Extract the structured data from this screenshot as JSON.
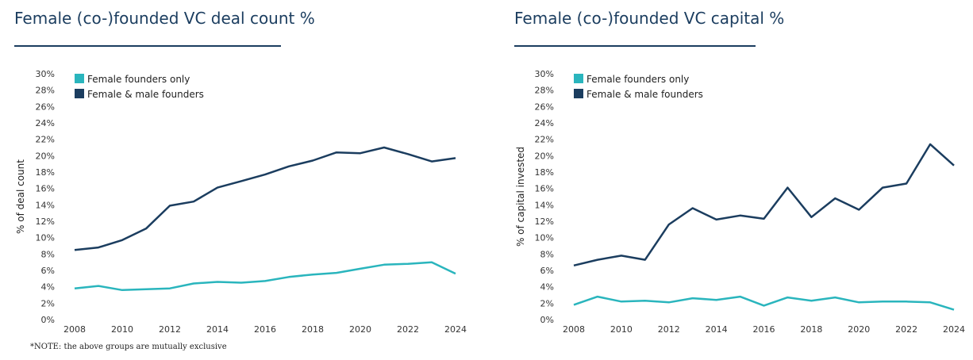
{
  "note": "*NOTE: the above groups are mutually exclusive",
  "colors": {
    "teal": "#2ab5bd",
    "navy": "#1b3d5f",
    "rule": "#1b3d5f"
  },
  "charts": [
    {
      "title": "Female (co-)founded VC deal count %",
      "chart_data": {
        "type": "line",
        "ylabel": "% of deal count",
        "xlabel": "",
        "ylim": [
          0,
          30
        ],
        "yticks": [
          0,
          2,
          4,
          6,
          8,
          10,
          12,
          14,
          16,
          18,
          20,
          22,
          24,
          26,
          28,
          30
        ],
        "ytick_suffix": "%",
        "x": [
          2008,
          2009,
          2010,
          2011,
          2012,
          2013,
          2014,
          2015,
          2016,
          2017,
          2018,
          2019,
          2020,
          2021,
          2022,
          2023,
          2024
        ],
        "xticks": [
          2008,
          2010,
          2012,
          2014,
          2016,
          2018,
          2020,
          2022,
          2024
        ],
        "grid": false,
        "legend": "top-left",
        "series": [
          {
            "name": "Female founders only",
            "color": "#2ab5bd",
            "values": [
              3.8,
              4.1,
              3.6,
              3.7,
              3.8,
              4.4,
              4.6,
              4.5,
              4.7,
              5.2,
              5.5,
              5.7,
              6.2,
              6.7,
              6.8,
              7.0,
              5.6
            ]
          },
          {
            "name": "Female & male founders",
            "color": "#1b3d5f",
            "values": [
              8.5,
              8.8,
              9.7,
              11.1,
              13.9,
              14.4,
              16.1,
              16.9,
              17.7,
              18.7,
              19.4,
              20.4,
              20.3,
              21.0,
              20.2,
              19.3,
              19.7
            ]
          }
        ]
      }
    },
    {
      "title": "Female (co-)founded VC capital %",
      "chart_data": {
        "type": "line",
        "ylabel": "% of capital invested",
        "xlabel": "",
        "ylim": [
          0,
          30
        ],
        "yticks": [
          0,
          2,
          4,
          6,
          8,
          10,
          12,
          14,
          16,
          18,
          20,
          22,
          24,
          26,
          28,
          30
        ],
        "ytick_suffix": "%",
        "x": [
          2008,
          2009,
          2010,
          2011,
          2012,
          2013,
          2014,
          2015,
          2016,
          2017,
          2018,
          2019,
          2020,
          2021,
          2022,
          2023,
          2024
        ],
        "xticks": [
          2008,
          2010,
          2012,
          2014,
          2016,
          2018,
          2020,
          2022,
          2024
        ],
        "grid": false,
        "legend": "top-left",
        "series": [
          {
            "name": "Female founders only",
            "color": "#2ab5bd",
            "values": [
              1.8,
              2.8,
              2.2,
              2.3,
              2.1,
              2.6,
              2.4,
              2.8,
              1.7,
              2.7,
              2.3,
              2.7,
              2.1,
              2.2,
              2.2,
              2.1,
              1.2
            ]
          },
          {
            "name": "Female & male founders",
            "color": "#1b3d5f",
            "values": [
              6.6,
              7.3,
              7.8,
              7.3,
              11.6,
              13.6,
              12.2,
              12.7,
              12.3,
              16.1,
              12.5,
              14.8,
              13.4,
              16.1,
              16.6,
              21.4,
              18.8
            ]
          }
        ]
      }
    }
  ]
}
